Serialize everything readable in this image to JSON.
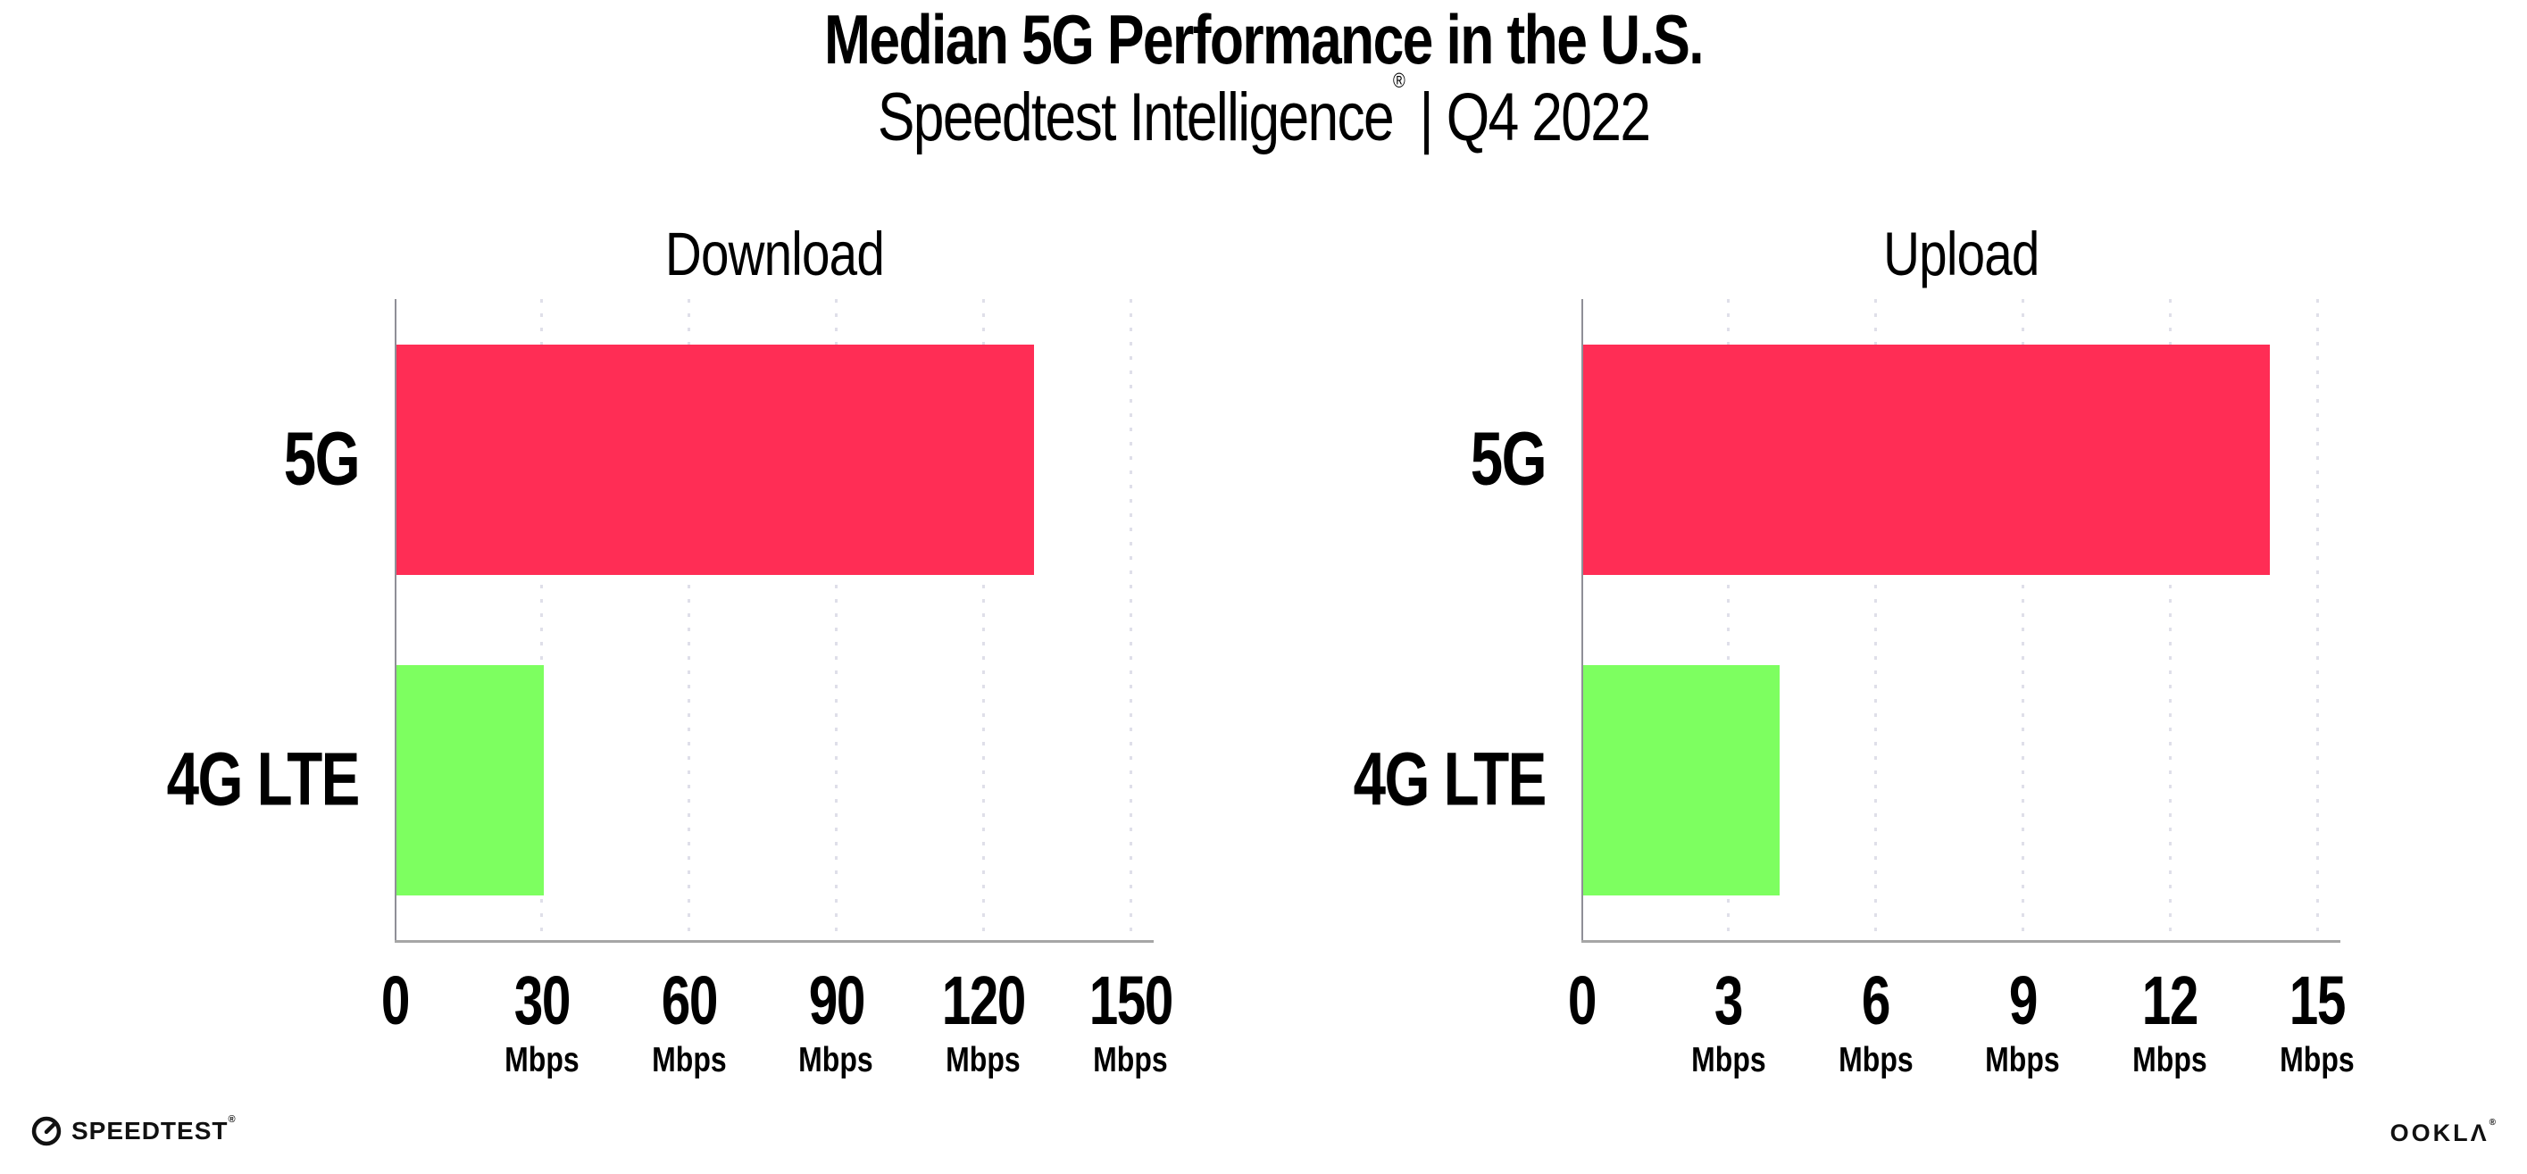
{
  "title": "Median 5G Performance in the U.S.",
  "subtitle": {
    "brand": "Speedtest Intelligence",
    "registered": "®",
    "rest": " | Q4 2022"
  },
  "chart_data": [
    {
      "type": "bar",
      "orientation": "horizontal",
      "title": "Download",
      "categories": [
        "5G",
        "4G LTE"
      ],
      "values": [
        130,
        30
      ],
      "value_unit": "Mbps",
      "xlim": [
        0,
        150
      ],
      "x_ticks": [
        0,
        30,
        60,
        90,
        120,
        150
      ],
      "x_tick_unit": "Mbps",
      "grid": "vertical-dotted",
      "legend": "none",
      "bar_colors": [
        "#ff2d55",
        "#7dff60"
      ]
    },
    {
      "type": "bar",
      "orientation": "horizontal",
      "title": "Upload",
      "categories": [
        "5G",
        "4G LTE"
      ],
      "values": [
        14,
        4
      ],
      "value_unit": "Mbps",
      "xlim": [
        0,
        15
      ],
      "x_ticks": [
        0,
        3,
        6,
        9,
        12,
        15
      ],
      "x_tick_unit": "Mbps",
      "grid": "vertical-dotted",
      "legend": "none",
      "bar_colors": [
        "#ff2d55",
        "#7dff60"
      ]
    }
  ],
  "footer": {
    "speedtest_wordmark": "SPEEDTEST",
    "speedtest_registered": "®",
    "ookla_wordmark": "OOKLΛ",
    "ookla_registered": "®"
  },
  "colors": {
    "bar_5g": "#ff2d55",
    "bar_4g_lte": "#7dff60",
    "gridline": "#dfdfe9",
    "x_axis": "#a6a6a6",
    "y_axis": "#8f8f97",
    "text": "#000000",
    "background": "#ffffff"
  }
}
